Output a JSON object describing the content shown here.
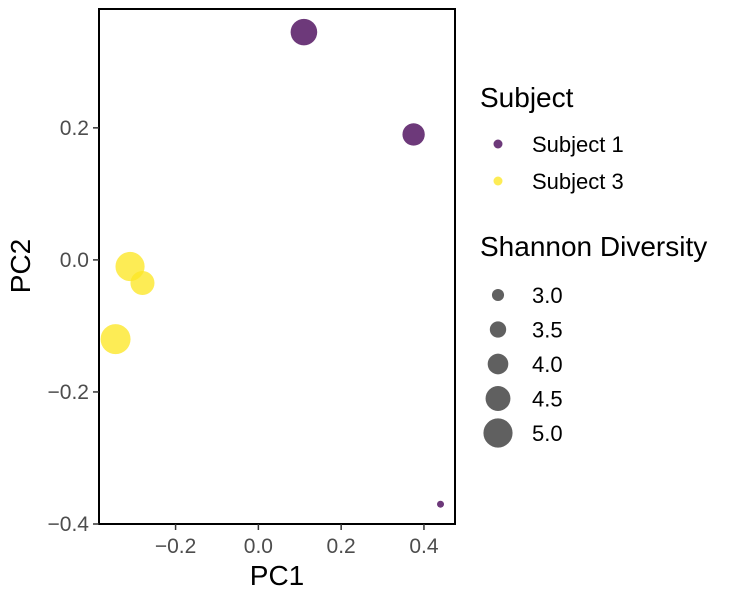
{
  "chart_data": {
    "type": "scatter",
    "title": "",
    "xlabel": "PC1",
    "ylabel": "PC2",
    "xlim": [
      -0.385,
      0.475
    ],
    "ylim": [
      -0.4,
      0.38
    ],
    "x_ticks": [
      -0.2,
      0.0,
      0.2,
      0.4
    ],
    "x_tick_labels": [
      "−0.2",
      "0.0",
      "0.2",
      "0.4"
    ],
    "y_ticks": [
      -0.4,
      -0.2,
      0.0,
      0.2
    ],
    "y_tick_labels": [
      "−0.4",
      "−0.2",
      "0.0",
      "0.2"
    ],
    "grid": false,
    "legend_placement": "right",
    "series": [
      {
        "name": "Subject 1",
        "color": "#440154",
        "points": [
          {
            "x": 0.11,
            "y": 0.345,
            "shannon": 4.7
          },
          {
            "x": 0.375,
            "y": 0.19,
            "shannon": 4.2
          },
          {
            "x": 0.44,
            "y": -0.37,
            "shannon": 2.4
          }
        ]
      },
      {
        "name": "Subject 3",
        "color": "#FDE725",
        "points": [
          {
            "x": -0.31,
            "y": -0.01,
            "shannon": 5.0
          },
          {
            "x": -0.28,
            "y": -0.035,
            "shannon": 4.4
          },
          {
            "x": -0.345,
            "y": -0.12,
            "shannon": 5.1
          }
        ]
      }
    ],
    "color_legend": {
      "title": "Subject",
      "entries": [
        "Subject 1",
        "Subject 3"
      ]
    },
    "size_legend": {
      "title": "Shannon Diversity",
      "entries": [
        {
          "value": 3.0,
          "label": "3.0"
        },
        {
          "value": 3.5,
          "label": "3.5"
        },
        {
          "value": 4.0,
          "label": "4.0"
        },
        {
          "value": 4.5,
          "label": "4.5"
        },
        {
          "value": 5.0,
          "label": "5.0"
        }
      ],
      "color": "#333333"
    },
    "size_range": [
      2.0,
      5.2
    ]
  }
}
